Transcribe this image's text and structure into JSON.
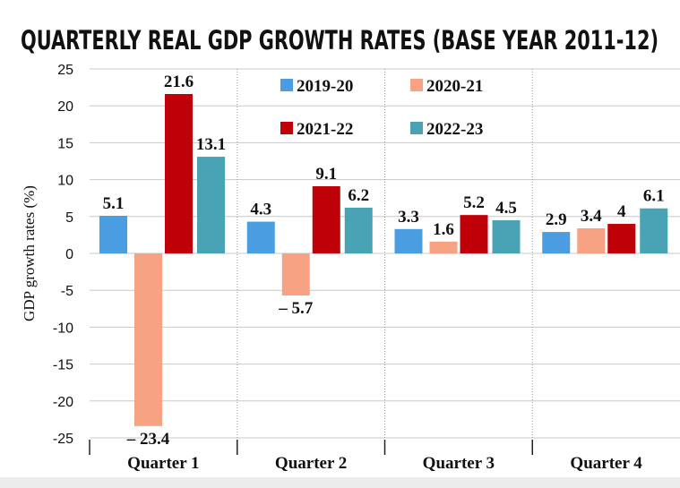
{
  "chart_data": {
    "type": "bar",
    "title": "QUARTERLY REAL GDP GROWTH RATES (BASE YEAR 2011-12)",
    "xlabel": "",
    "ylabel": "GDP growth rates (%)",
    "ylim": [
      -25,
      25
    ],
    "yticks": [
      25,
      20,
      15,
      10,
      5,
      0,
      -5,
      -10,
      -15,
      -20,
      -25
    ],
    "grid": true,
    "legend": "top-center",
    "categories": [
      "Quarter 1",
      "Quarter 2",
      "Quarter 3",
      "Quarter 4"
    ],
    "series": [
      {
        "name": "2019-20",
        "color": "#4a9de0",
        "values": [
          5.1,
          4.3,
          3.3,
          2.9
        ],
        "labels": [
          "5.1",
          "4.3",
          "3.3",
          "2.9"
        ]
      },
      {
        "name": "2020-21",
        "color": "#f8a284",
        "values": [
          -23.4,
          -5.7,
          1.6,
          3.4
        ],
        "labels": [
          "– 23.4",
          "– 5.7",
          "1.6",
          "3.4"
        ]
      },
      {
        "name": "2021-22",
        "color": "#c00008",
        "values": [
          21.6,
          9.1,
          5.2,
          4
        ],
        "labels": [
          "21.6",
          "9.1",
          "5.2",
          "4"
        ]
      },
      {
        "name": "2022-23",
        "color": "#4aa3b4",
        "values": [
          13.1,
          6.2,
          4.5,
          6.1
        ],
        "labels": [
          "13.1",
          "6.2",
          "4.5",
          "6.1"
        ]
      }
    ]
  }
}
